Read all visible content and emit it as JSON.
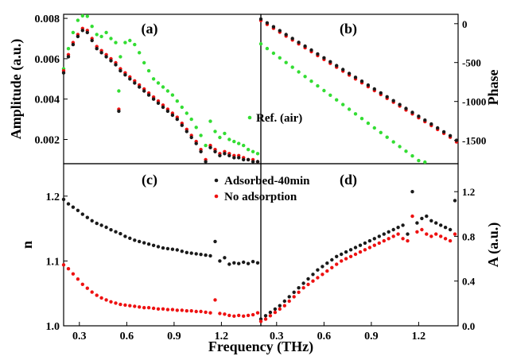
{
  "colors": {
    "sample": "#1a1a1a",
    "reference": "#33dd33",
    "no_adsorption": "#ee1111"
  },
  "chart_data": [
    {
      "panel": "(a)",
      "type": "scatter",
      "xlim": [
        0.2,
        1.45
      ],
      "ylim": [
        0.0008,
        0.0082
      ],
      "ylabel": "Amplitude (a.u.)",
      "yticks": [
        "0.002",
        "0.004",
        "0.006",
        "0.008"
      ],
      "legend": [
        {
          "label": "Ref. (air)",
          "marker": "dot",
          "color": "#33dd33",
          "placement": "center-right"
        }
      ],
      "series": [
        {
          "name": "Ref. (air)",
          "color": "#33dd33",
          "x": [
            0.2,
            0.23,
            0.26,
            0.29,
            0.32,
            0.35,
            0.38,
            0.41,
            0.44,
            0.47,
            0.5,
            0.53,
            0.55,
            0.56,
            0.59,
            0.62,
            0.65,
            0.68,
            0.71,
            0.74,
            0.77,
            0.8,
            0.83,
            0.86,
            0.89,
            0.92,
            0.95,
            0.98,
            1.01,
            1.04,
            1.07,
            1.1,
            1.13,
            1.16,
            1.19,
            1.22,
            1.25,
            1.28,
            1.31,
            1.34,
            1.37,
            1.4,
            1.43
          ],
          "y": [
            0.0055,
            0.0065,
            0.0073,
            0.0079,
            0.0082,
            0.0081,
            0.0076,
            0.0072,
            0.0071,
            0.0073,
            0.007,
            0.0068,
            0.0044,
            0.0061,
            0.0068,
            0.0069,
            0.0067,
            0.0063,
            0.0058,
            0.0054,
            0.005,
            0.0048,
            0.0046,
            0.0044,
            0.0042,
            0.0039,
            0.0036,
            0.0033,
            0.003,
            0.0026,
            0.0022,
            0.0017,
            0.0029,
            0.0024,
            0.0021,
            0.0023,
            0.002,
            0.0019,
            0.0018,
            0.0017,
            0.0015,
            0.0014,
            0.0013
          ]
        },
        {
          "name": "No adsorption",
          "color": "#ee1111",
          "x": [
            0.2,
            0.23,
            0.26,
            0.29,
            0.32,
            0.35,
            0.38,
            0.41,
            0.44,
            0.47,
            0.5,
            0.53,
            0.55,
            0.56,
            0.59,
            0.62,
            0.65,
            0.68,
            0.71,
            0.74,
            0.77,
            0.8,
            0.83,
            0.86,
            0.89,
            0.92,
            0.95,
            0.98,
            1.01,
            1.04,
            1.07,
            1.1,
            1.13,
            1.16,
            1.19,
            1.22,
            1.25,
            1.28,
            1.31,
            1.34,
            1.37,
            1.4,
            1.43
          ],
          "y": [
            0.0054,
            0.0062,
            0.0068,
            0.0072,
            0.0075,
            0.0074,
            0.007,
            0.0066,
            0.0064,
            0.0062,
            0.006,
            0.0058,
            0.0035,
            0.0055,
            0.0053,
            0.0051,
            0.0049,
            0.0047,
            0.0045,
            0.0043,
            0.0041,
            0.0039,
            0.0037,
            0.0035,
            0.0033,
            0.0031,
            0.0028,
            0.0025,
            0.0022,
            0.0019,
            0.0015,
            0.001,
            0.0017,
            0.0015,
            0.0013,
            0.0014,
            0.0013,
            0.0012,
            0.0012,
            0.0011,
            0.001,
            0.001,
            0.0009
          ]
        },
        {
          "name": "Adsorbed-40min",
          "color": "#1a1a1a",
          "x": [
            0.2,
            0.23,
            0.26,
            0.29,
            0.32,
            0.35,
            0.38,
            0.41,
            0.44,
            0.47,
            0.5,
            0.53,
            0.55,
            0.56,
            0.59,
            0.62,
            0.65,
            0.68,
            0.71,
            0.74,
            0.77,
            0.8,
            0.83,
            0.86,
            0.89,
            0.92,
            0.95,
            0.98,
            1.01,
            1.04,
            1.07,
            1.1,
            1.13,
            1.16,
            1.19,
            1.22,
            1.25,
            1.28,
            1.31,
            1.34,
            1.37,
            1.4,
            1.43
          ],
          "y": [
            0.0053,
            0.0061,
            0.0067,
            0.0071,
            0.0074,
            0.0073,
            0.0069,
            0.0065,
            0.0063,
            0.0061,
            0.0059,
            0.0057,
            0.0034,
            0.0054,
            0.0052,
            0.005,
            0.0048,
            0.0046,
            0.0044,
            0.0042,
            0.004,
            0.0038,
            0.0036,
            0.0034,
            0.0032,
            0.003,
            0.0027,
            0.0024,
            0.0021,
            0.0018,
            0.0014,
            0.0009,
            0.0016,
            0.0014,
            0.0012,
            0.0013,
            0.0012,
            0.0011,
            0.0011,
            0.001,
            0.001,
            0.0009,
            0.0009
          ]
        }
      ]
    },
    {
      "panel": "(b)",
      "type": "scatter",
      "xlim": [
        0.2,
        1.45
      ],
      "ylim": [
        -1800,
        120
      ],
      "ylabel": "Phase",
      "yticks": [
        "0",
        "-500",
        "-1000",
        "-1500"
      ],
      "series": [
        {
          "name": "Ref. (air)",
          "color": "#33dd33",
          "x": [
            0.2,
            0.24,
            0.28,
            0.32,
            0.36,
            0.4,
            0.44,
            0.48,
            0.52,
            0.56,
            0.6,
            0.64,
            0.68,
            0.72,
            0.76,
            0.8,
            0.84,
            0.88,
            0.92,
            0.96,
            1.0,
            1.04,
            1.08,
            1.12,
            1.16,
            1.2,
            1.24
          ],
          "y": [
            -260,
            -320,
            -380,
            -440,
            -500,
            -560,
            -620,
            -680,
            -740,
            -800,
            -860,
            -920,
            -980,
            -1040,
            -1100,
            -1160,
            -1220,
            -1280,
            -1340,
            -1400,
            -1460,
            -1520,
            -1580,
            -1640,
            -1700,
            -1760,
            -1800
          ]
        },
        {
          "name": "No adsorption",
          "color": "#ee1111",
          "x": [
            0.2,
            0.24,
            0.28,
            0.32,
            0.36,
            0.4,
            0.44,
            0.48,
            0.52,
            0.56,
            0.6,
            0.64,
            0.68,
            0.72,
            0.76,
            0.8,
            0.84,
            0.88,
            0.92,
            0.96,
            1.0,
            1.04,
            1.08,
            1.12,
            1.16,
            1.2,
            1.24,
            1.28,
            1.32,
            1.36,
            1.4,
            1.44
          ],
          "y": [
            40,
            -10,
            -60,
            -110,
            -160,
            -210,
            -260,
            -310,
            -360,
            -410,
            -460,
            -510,
            -560,
            -610,
            -660,
            -710,
            -760,
            -810,
            -860,
            -910,
            -960,
            -1010,
            -1060,
            -1110,
            -1160,
            -1210,
            -1260,
            -1310,
            -1360,
            -1410,
            -1460,
            -1520
          ]
        },
        {
          "name": "Adsorbed-40min",
          "color": "#1a1a1a",
          "x": [
            0.2,
            0.24,
            0.28,
            0.32,
            0.36,
            0.4,
            0.44,
            0.48,
            0.52,
            0.56,
            0.6,
            0.64,
            0.68,
            0.72,
            0.76,
            0.8,
            0.84,
            0.88,
            0.92,
            0.96,
            1.0,
            1.04,
            1.08,
            1.12,
            1.16,
            1.2,
            1.24,
            1.28,
            1.32,
            1.36,
            1.4,
            1.44
          ],
          "y": [
            60,
            10,
            -40,
            -90,
            -140,
            -190,
            -240,
            -290,
            -340,
            -390,
            -440,
            -490,
            -540,
            -590,
            -640,
            -690,
            -740,
            -790,
            -840,
            -890,
            -940,
            -990,
            -1040,
            -1090,
            -1140,
            -1190,
            -1240,
            -1290,
            -1340,
            -1390,
            -1440,
            -1500
          ]
        }
      ]
    },
    {
      "panel": "(c)",
      "type": "scatter",
      "xlim": [
        0.2,
        1.45
      ],
      "ylim": [
        1.0,
        1.25
      ],
      "ylabel": "n",
      "yticks": [
        "1.0",
        "1.1",
        "1.2"
      ],
      "xticks": [
        "0.3",
        "0.6",
        "0.9",
        "1.2"
      ],
      "legend": [
        {
          "label": "Adsorbed-40min",
          "marker": "dot",
          "color": "#1a1a1a",
          "placement": "top-center"
        },
        {
          "label": "No adsorption",
          "marker": "dot",
          "color": "#ee1111",
          "placement": "top-center"
        }
      ],
      "series": [
        {
          "name": "Adsorbed-40min",
          "color": "#1a1a1a",
          "x": [
            0.2,
            0.23,
            0.26,
            0.29,
            0.32,
            0.35,
            0.38,
            0.41,
            0.44,
            0.47,
            0.5,
            0.53,
            0.56,
            0.59,
            0.62,
            0.65,
            0.68,
            0.71,
            0.74,
            0.77,
            0.8,
            0.83,
            0.86,
            0.89,
            0.92,
            0.95,
            0.98,
            1.01,
            1.04,
            1.07,
            1.1,
            1.13,
            1.16,
            1.19,
            1.22,
            1.25,
            1.28,
            1.31,
            1.34,
            1.37,
            1.4,
            1.43
          ],
          "y": [
            1.195,
            1.188,
            1.183,
            1.178,
            1.172,
            1.167,
            1.162,
            1.158,
            1.155,
            1.152,
            1.148,
            1.145,
            1.142,
            1.138,
            1.135,
            1.132,
            1.13,
            1.128,
            1.126,
            1.124,
            1.122,
            1.12,
            1.119,
            1.118,
            1.117,
            1.115,
            1.113,
            1.112,
            1.111,
            1.11,
            1.109,
            1.108,
            1.13,
            1.1,
            1.105,
            1.095,
            1.097,
            1.096,
            1.098,
            1.096,
            1.099,
            1.097
          ]
        },
        {
          "name": "No adsorption",
          "color": "#ee1111",
          "x": [
            0.2,
            0.23,
            0.26,
            0.29,
            0.32,
            0.35,
            0.38,
            0.41,
            0.44,
            0.47,
            0.5,
            0.53,
            0.56,
            0.59,
            0.62,
            0.65,
            0.68,
            0.71,
            0.74,
            0.77,
            0.8,
            0.83,
            0.86,
            0.89,
            0.92,
            0.95,
            0.98,
            1.01,
            1.04,
            1.07,
            1.1,
            1.13,
            1.16,
            1.19,
            1.22,
            1.25,
            1.28,
            1.31,
            1.34,
            1.37,
            1.4,
            1.43
          ],
          "y": [
            1.094,
            1.088,
            1.08,
            1.072,
            1.064,
            1.058,
            1.052,
            1.047,
            1.043,
            1.04,
            1.037,
            1.035,
            1.033,
            1.032,
            1.031,
            1.03,
            1.029,
            1.028,
            1.028,
            1.027,
            1.026,
            1.026,
            1.025,
            1.025,
            1.024,
            1.024,
            1.023,
            1.023,
            1.022,
            1.022,
            1.021,
            1.02,
            1.04,
            1.019,
            1.018,
            1.016,
            1.015,
            1.016,
            1.015,
            1.016,
            1.017,
            1.02
          ]
        }
      ]
    },
    {
      "panel": "(d)",
      "type": "scatter",
      "xlim": [
        0.2,
        1.45
      ],
      "ylim": [
        0.0,
        1.45
      ],
      "ylabel": "A (a.u.)",
      "yticks": [
        "0.0",
        "0.4",
        "0.8",
        "1.2"
      ],
      "xticks": [
        "0.3",
        "0.6",
        "0.9",
        "1.2"
      ],
      "series": [
        {
          "name": "Adsorbed-40min",
          "color": "#1a1a1a",
          "x": [
            0.2,
            0.23,
            0.26,
            0.29,
            0.32,
            0.35,
            0.38,
            0.41,
            0.44,
            0.47,
            0.5,
            0.53,
            0.56,
            0.59,
            0.62,
            0.65,
            0.68,
            0.71,
            0.74,
            0.77,
            0.8,
            0.83,
            0.86,
            0.89,
            0.92,
            0.95,
            0.98,
            1.01,
            1.04,
            1.07,
            1.1,
            1.13,
            1.16,
            1.19,
            1.22,
            1.25,
            1.28,
            1.31,
            1.34,
            1.37,
            1.4,
            1.43
          ],
          "y": [
            0.06,
            0.09,
            0.12,
            0.15,
            0.18,
            0.22,
            0.26,
            0.3,
            0.34,
            0.38,
            0.42,
            0.46,
            0.5,
            0.53,
            0.56,
            0.59,
            0.62,
            0.64,
            0.66,
            0.68,
            0.7,
            0.72,
            0.74,
            0.76,
            0.78,
            0.8,
            0.82,
            0.84,
            0.86,
            0.88,
            0.9,
            0.82,
            1.2,
            0.92,
            0.96,
            0.98,
            0.94,
            0.92,
            0.9,
            0.88,
            0.86,
            1.12
          ]
        },
        {
          "name": "No adsorption",
          "color": "#ee1111",
          "x": [
            0.2,
            0.23,
            0.26,
            0.29,
            0.32,
            0.35,
            0.38,
            0.41,
            0.44,
            0.47,
            0.5,
            0.53,
            0.56,
            0.59,
            0.62,
            0.65,
            0.68,
            0.71,
            0.74,
            0.77,
            0.8,
            0.83,
            0.86,
            0.89,
            0.92,
            0.95,
            0.98,
            1.01,
            1.04,
            1.07,
            1.1,
            1.13,
            1.16,
            1.19,
            1.22,
            1.25,
            1.28,
            1.31,
            1.34,
            1.37,
            1.4,
            1.43
          ],
          "y": [
            0.04,
            0.06,
            0.09,
            0.12,
            0.15,
            0.18,
            0.22,
            0.26,
            0.3,
            0.34,
            0.37,
            0.4,
            0.43,
            0.46,
            0.49,
            0.52,
            0.55,
            0.58,
            0.6,
            0.62,
            0.64,
            0.66,
            0.68,
            0.7,
            0.72,
            0.74,
            0.76,
            0.78,
            0.8,
            0.82,
            0.78,
            0.76,
            0.98,
            0.84,
            0.86,
            0.82,
            0.8,
            0.82,
            0.8,
            0.78,
            0.76,
            0.82
          ]
        }
      ]
    }
  ],
  "shared": {
    "xlabel": "Frequency (THz)"
  }
}
